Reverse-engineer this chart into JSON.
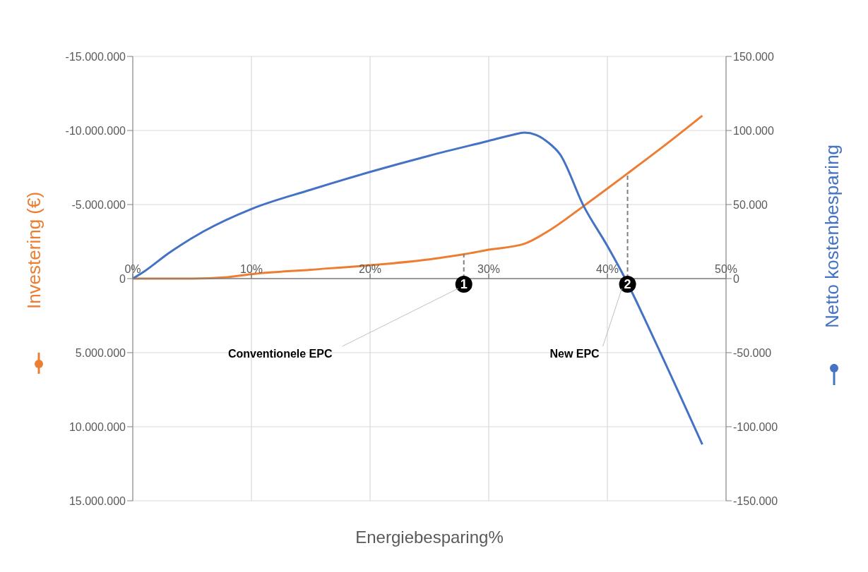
{
  "chart_data": {
    "type": "line",
    "xlabel": "Energiebesparing%",
    "ylabel": "Investering (€)",
    "y2label": "Netto kostenbesparing",
    "series": [
      {
        "color": "#ed7d31",
        "x": [
          0,
          5,
          8,
          10,
          15,
          20,
          25,
          28,
          30,
          33,
          35,
          38,
          41.7,
          45,
          48
        ],
        "values": [
          0,
          0,
          -100000,
          -300000,
          -600000,
          -900000,
          -1300000,
          -1650000,
          -1950000,
          -2350000,
          -3200000,
          -4900000,
          -7100000,
          -9100000,
          -11000000
        ]
      },
      {
        "color": "#4472c4",
        "axis": "y2",
        "x": [
          0,
          1,
          3,
          6,
          10,
          15,
          20,
          25,
          30,
          32,
          33,
          34,
          35,
          36,
          38,
          40,
          41.5,
          44,
          48
        ],
        "values": [
          0,
          5000,
          17000,
          32000,
          47000,
          60000,
          72000,
          83000,
          93000,
          97000,
          98600,
          97000,
          92000,
          84000,
          49000,
          22000,
          0,
          -42000,
          -112000
        ]
      }
    ],
    "xlim": [
      0,
      50
    ],
    "xticks": [
      {
        "value": 0,
        "label": "0%"
      },
      {
        "value": 10,
        "label": "10%"
      },
      {
        "value": 20,
        "label": "20%"
      },
      {
        "value": 30,
        "label": "30%"
      },
      {
        "value": 40,
        "label": "40%"
      },
      {
        "value": 50,
        "label": "50%"
      }
    ],
    "ylim": [
      15000000,
      -15000000
    ],
    "yticks": [
      {
        "value": -15000000,
        "label": "-15.000.000"
      },
      {
        "value": -10000000,
        "label": "-10.000.000"
      },
      {
        "value": -5000000,
        "label": "-5.000.000"
      },
      0,
      {
        "value": 5000000,
        "label": "5.000.000"
      },
      {
        "value": 10000000,
        "label": "10.000.000"
      },
      {
        "value": 15000000,
        "label": "15.000.000"
      }
    ],
    "y2lim": [
      -150000,
      150000
    ],
    "y2ticks": [
      {
        "value": 150000,
        "label": "150.000"
      },
      {
        "value": 100000,
        "label": "100.000"
      },
      {
        "value": 50000,
        "label": "50.000"
      },
      0,
      {
        "value": -50000,
        "label": "-50.000"
      },
      {
        "value": -100000,
        "label": "-100.000"
      },
      {
        "value": -150000,
        "label": "-150.000"
      }
    ],
    "annotations": [
      {
        "text": "1",
        "x": 27.9,
        "y": -1650000
      },
      "Conventionele EPC",
      {
        "text": "2",
        "x": 41.7,
        "y": -7100000
      },
      "New EPC"
    ],
    "grid": true,
    "marker": "none",
    "line_style": "solid"
  }
}
